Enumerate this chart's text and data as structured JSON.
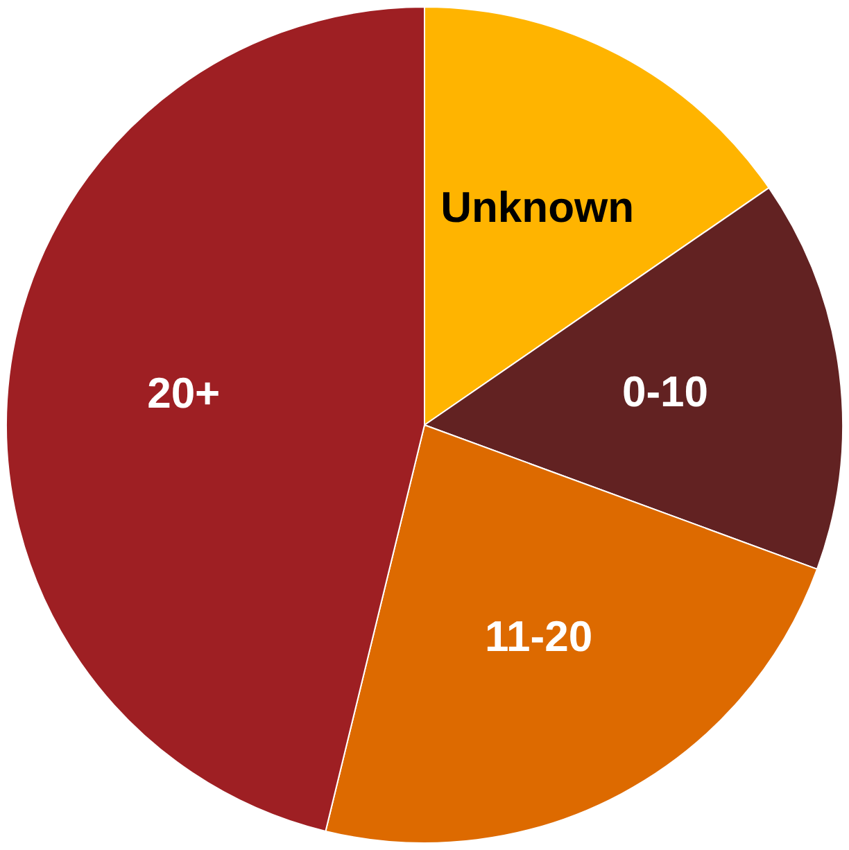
{
  "chart_data": {
    "type": "pie",
    "categories": [
      "Unknown",
      "0-10",
      "11-20",
      "20+"
    ],
    "values": [
      15.4,
      15.2,
      23.2,
      46.2
    ],
    "colors": [
      "#ffb400",
      "#622222",
      "#dd6a00",
      "#9e1f23"
    ],
    "legend": false
  }
}
